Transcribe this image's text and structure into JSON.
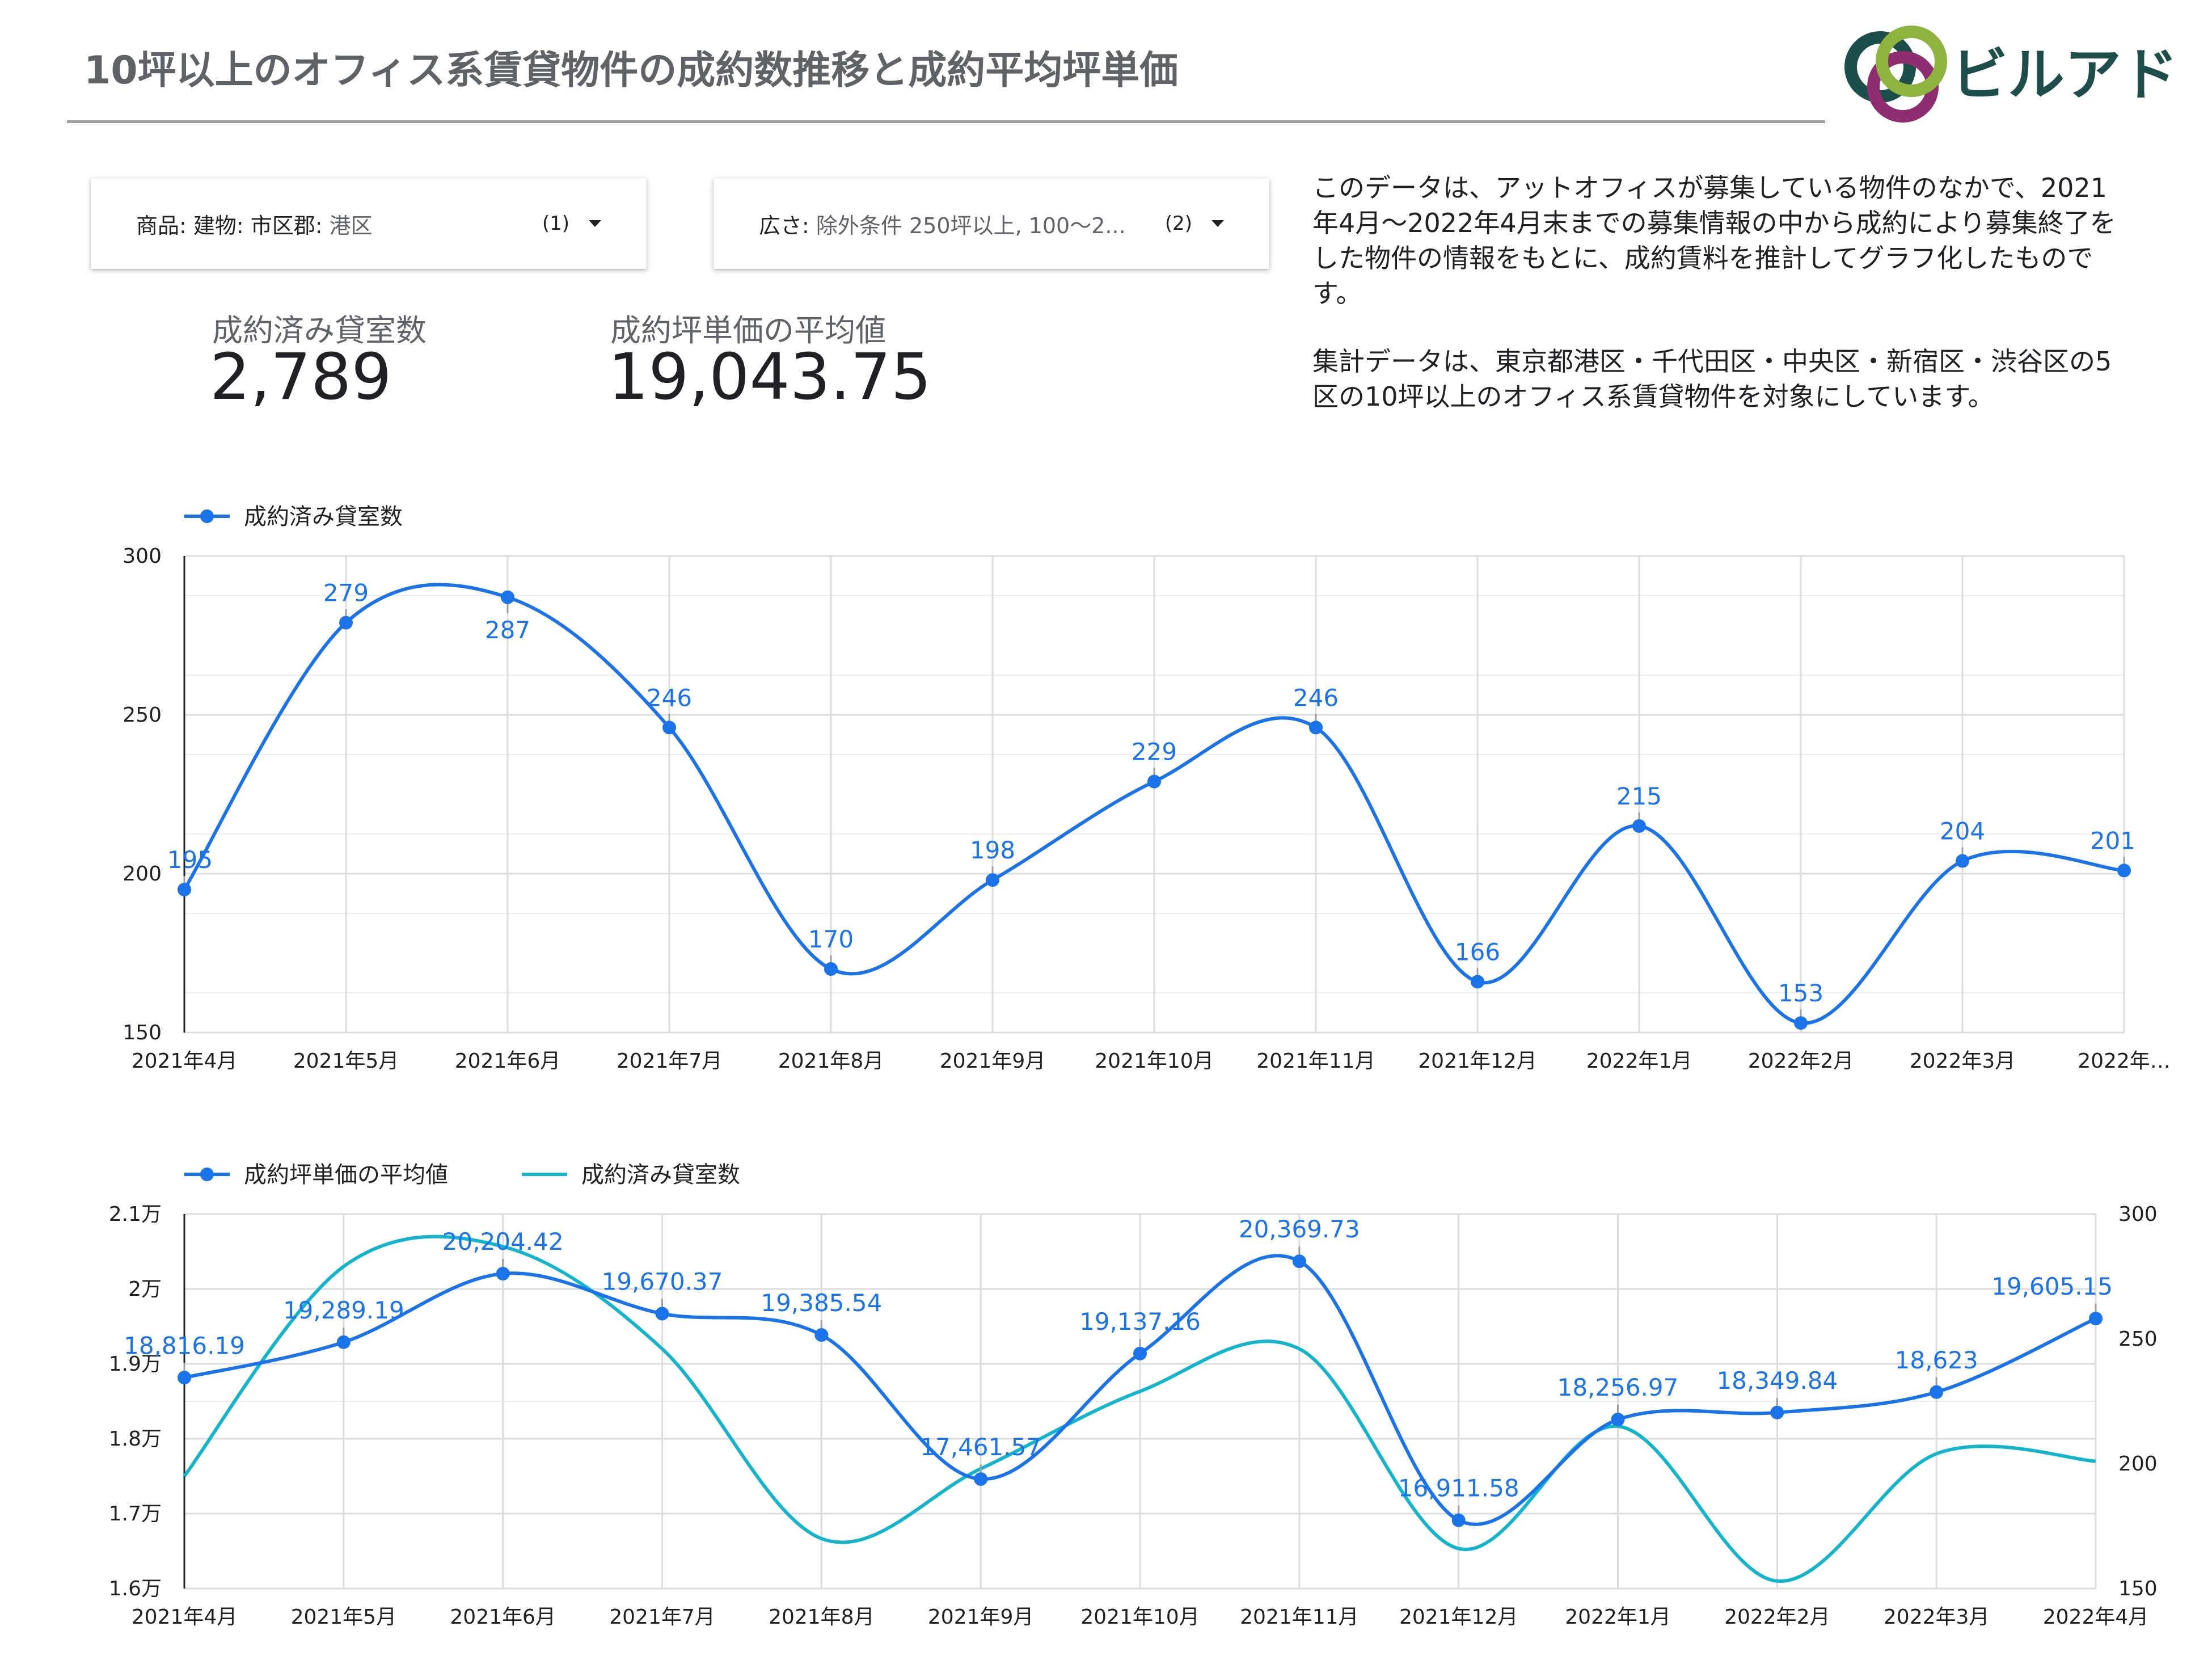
{
  "header": {
    "title": "10坪以上のオフィス系賃貸物件の成約数推移と成約平均坪単価",
    "logo_text": "ビルアド"
  },
  "filters": [
    {
      "key": "商品: 建物: 市区郡:",
      "value": " 港区",
      "count": "(1)"
    },
    {
      "key": "広さ:",
      "value": " 除外条件 250坪以上, 100～2...",
      "count": "(2)"
    }
  ],
  "kpis": [
    {
      "label": "成約済み貸室数",
      "value": "2,789"
    },
    {
      "label": "成約坪単価の平均値",
      "value": "19,043.75"
    }
  ],
  "description": [
    "このデータは、アットオフィスが募集している物件のなかで、2021年4月～2022年4月末までの募集情報の中から成約により募集終了をした物件の情報をもとに、成約賃料を推計してグラフ化したものです。",
    "集計データは、東京都港区・千代田区・中央区・新宿区・渋谷区の5区の10坪以上のオフィス系賃貸物件を対象にしています。"
  ],
  "colors": {
    "blue": "#1a73e8",
    "teal": "#12b5cb",
    "grid": "#dadce0",
    "axis_text": "#202124",
    "label_blue": "#1a73e8"
  },
  "chart_data": [
    {
      "type": "line",
      "legend": "top-left",
      "grid": true,
      "x": [
        "2021年4月",
        "2021年5月",
        "2021年6月",
        "2021年7月",
        "2021年8月",
        "2021年9月",
        "2021年10月",
        "2021年11月",
        "2021年12月",
        "2022年1月",
        "2022年2月",
        "2022年3月",
        "2022年…"
      ],
      "series": [
        {
          "name": "成約済み貸室数",
          "values": [
            195,
            279,
            287,
            246,
            170,
            198,
            229,
            246,
            166,
            215,
            153,
            204,
            201
          ]
        }
      ],
      "data_labels": [
        "195",
        "279",
        "287",
        "246",
        "170",
        "198",
        "229",
        "246",
        "166",
        "215",
        "153",
        "204",
        "201"
      ],
      "ylim": [
        150,
        300
      ],
      "yticks": [
        "150",
        "200",
        "250",
        "300"
      ]
    },
    {
      "type": "line",
      "legend": "top-left",
      "grid": true,
      "x": [
        "2021年4月",
        "2021年5月",
        "2021年6月",
        "2021年7月",
        "2021年8月",
        "2021年9月",
        "2021年10月",
        "2021年11月",
        "2021年12月",
        "2022年1月",
        "2022年2月",
        "2022年3月",
        "2022年4月"
      ],
      "series": [
        {
          "name": "成約坪単価の平均値",
          "axis": "left",
          "values": [
            18816.19,
            19289.19,
            20204.42,
            19670.37,
            19385.54,
            17461.57,
            19137.16,
            20369.73,
            16911.58,
            18256.97,
            18349.84,
            18623,
            19605.15
          ]
        },
        {
          "name": "成約済み貸室数",
          "axis": "right",
          "values": [
            195,
            279,
            287,
            246,
            170,
            198,
            229,
            246,
            166,
            215,
            153,
            204,
            201
          ]
        }
      ],
      "data_labels": [
        "18,816.19",
        "19,289.19",
        "20,204.42",
        "19,670.37",
        "19,385.54",
        "17,461.57",
        "19,137.16",
        "20,369.73",
        "16,911.58",
        "18,256.97",
        "18,349.84",
        "18,623",
        "19,605.15"
      ],
      "ylim_left": [
        16000,
        21000
      ],
      "yticks_left": [
        "1.6万",
        "1.7万",
        "1.8万",
        "1.9万",
        "2万",
        "2.1万"
      ],
      "ylim_right": [
        150,
        300
      ],
      "yticks_right": [
        "150",
        "200",
        "250",
        "300"
      ]
    }
  ]
}
